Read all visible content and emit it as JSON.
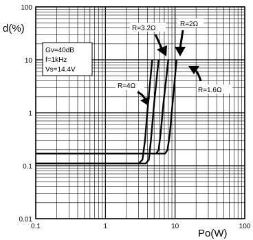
{
  "chart_data": {
    "type": "line",
    "xlabel": "Po(W)",
    "ylabel": "d(%)",
    "xscale": "log",
    "yscale": "log",
    "xlim": [
      0.1,
      100
    ],
    "ylim": [
      0.01,
      100
    ],
    "grid": true,
    "x_ticks": [
      {
        "value": 0.1,
        "label": "0.1"
      },
      {
        "value": 1,
        "label": "1"
      },
      {
        "value": 10,
        "label": "10"
      },
      {
        "value": 100,
        "label": "100"
      }
    ],
    "y_ticks": [
      {
        "value": 0.01,
        "label": "0.01"
      },
      {
        "value": 0.1,
        "label": "0.1"
      },
      {
        "value": 1,
        "label": "1"
      },
      {
        "value": 10,
        "label": "10"
      },
      {
        "value": 100,
        "label": "100"
      }
    ],
    "conditions": [
      "Gv=40dB",
      "f=1kHz",
      "Vs=14.4V"
    ],
    "series": [
      {
        "name": "R=4Ω",
        "points": [
          [
            0.1,
            0.11
          ],
          [
            3.0,
            0.11
          ],
          [
            3.4,
            0.13
          ],
          [
            3.7,
            0.3
          ],
          [
            4.1,
            1.5
          ],
          [
            4.7,
            10
          ]
        ]
      },
      {
        "name": "R=3.2Ω",
        "points": [
          [
            0.1,
            0.11
          ],
          [
            3.8,
            0.11
          ],
          [
            4.2,
            0.13
          ],
          [
            4.5,
            0.3
          ],
          [
            5.0,
            1.5
          ],
          [
            5.8,
            10
          ]
        ]
      },
      {
        "name": "R=2Ω",
        "points": [
          [
            0.1,
            0.17
          ],
          [
            5.4,
            0.17
          ],
          [
            5.8,
            0.2
          ],
          [
            6.2,
            0.4
          ],
          [
            6.8,
            1.5
          ],
          [
            8.0,
            10
          ]
        ]
      },
      {
        "name": "R=1.6Ω",
        "points": [
          [
            0.1,
            0.17
          ],
          [
            7.2,
            0.17
          ],
          [
            7.8,
            0.2
          ],
          [
            8.4,
            0.4
          ],
          [
            9.2,
            1.5
          ],
          [
            10.5,
            10
          ]
        ]
      }
    ]
  }
}
